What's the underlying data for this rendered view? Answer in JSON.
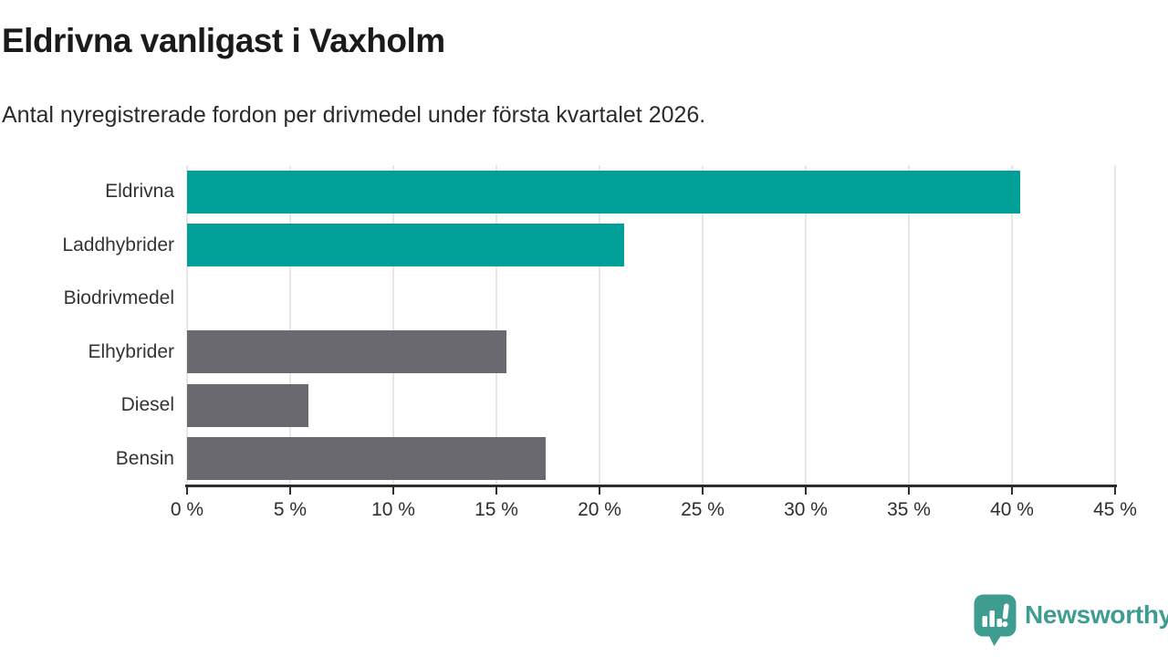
{
  "header": {
    "title": "Eldrivna vanligast i Vaxholm",
    "subtitle": "Antal nyregistrerade fordon per drivmedel under första kvartalet 2026."
  },
  "chart_data": {
    "type": "bar",
    "orientation": "horizontal",
    "title": "Eldrivna vanligast i Vaxholm",
    "subtitle": "Antal nyregistrerade fordon per drivmedel under första kvartalet 2026.",
    "categories": [
      "Eldrivna",
      "Laddhybrider",
      "Biodrivmedel",
      "Elhybrider",
      "Diesel",
      "Bensin"
    ],
    "values": [
      40.4,
      21.2,
      0,
      15.5,
      5.9,
      17.4
    ],
    "bar_colors": [
      "#00A098",
      "#00A098",
      "#6A6970",
      "#6A6970",
      "#6A6970",
      "#6A6970"
    ],
    "unit": "%",
    "xlabel": "",
    "ylabel": "",
    "xlim": [
      0,
      45
    ],
    "tick_values": [
      0,
      5,
      10,
      15,
      20,
      25,
      30,
      35,
      40,
      45
    ],
    "tick_labels": [
      "0 %",
      "5 %",
      "10 %",
      "15 %",
      "20 %",
      "25 %",
      "30 %",
      "35 %",
      "40 %",
      "45 %"
    ],
    "grid": true,
    "legend": false
  },
  "footer": {
    "brand": "Newsworthy",
    "brand_color": "#3E9C91",
    "logo_icon": "newsworthy-speech-bubble-bar-chart-icon"
  },
  "colors": {
    "accent_teal": "#00A098",
    "neutral_gray": "#6A6970",
    "gridline": "#E7E7E7",
    "axis": "#2E2E2E",
    "title_text": "#1A1A1A",
    "body_text": "#2B2B2B",
    "background": "#FFFFFF"
  }
}
